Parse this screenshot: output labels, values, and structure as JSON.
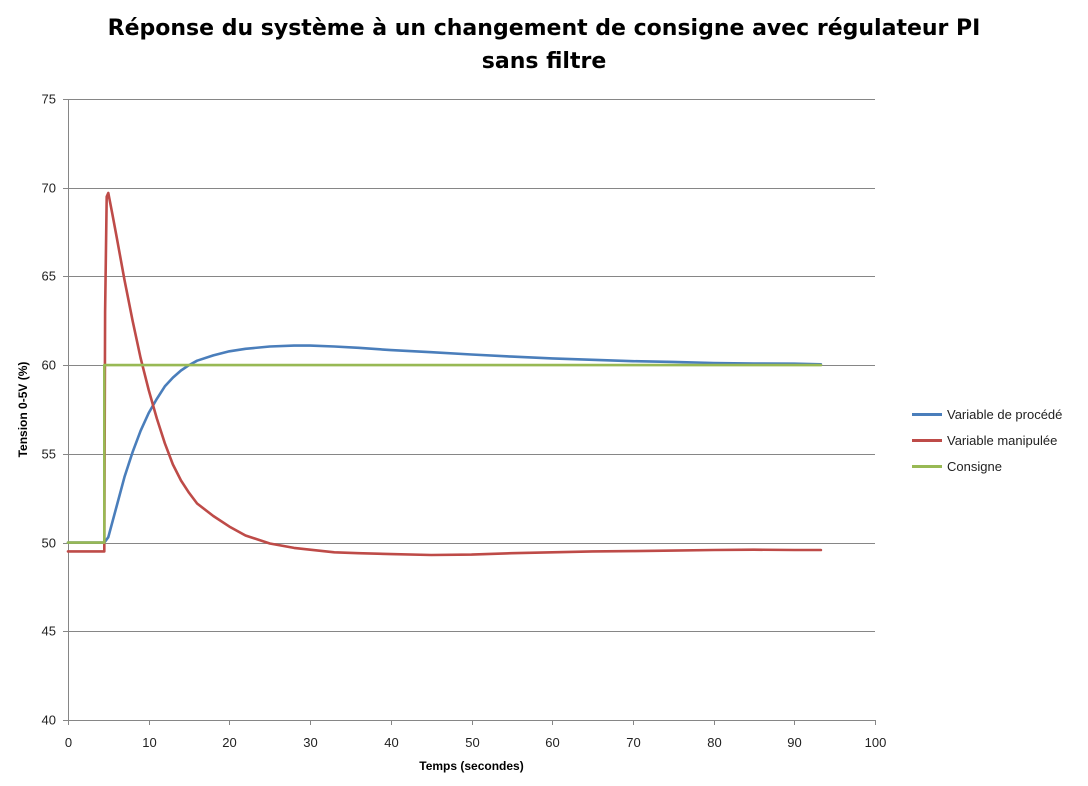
{
  "chart_data": {
    "type": "line",
    "title": [
      "Réponse du système à un changement de consigne avec régulateur PI",
      "sans filtre"
    ],
    "xlabel": "Temps (secondes)",
    "ylabel": "Tension 0-5V (%)",
    "xlim": [
      0,
      100
    ],
    "ylim": [
      40,
      75
    ],
    "xticks": [
      0,
      10,
      20,
      30,
      40,
      50,
      60,
      70,
      80,
      90,
      100
    ],
    "yticks": [
      40,
      45,
      50,
      55,
      60,
      65,
      70,
      75
    ],
    "grid": "horizontal",
    "legend_position": "right",
    "series": [
      {
        "name": "Variable de procédé",
        "color": "#4A7EBB",
        "points": [
          [
            0,
            50
          ],
          [
            4.5,
            50
          ],
          [
            5,
            50.3
          ],
          [
            6,
            52
          ],
          [
            7,
            53.7
          ],
          [
            8,
            55.1
          ],
          [
            9,
            56.3
          ],
          [
            10,
            57.3
          ],
          [
            11,
            58.1
          ],
          [
            12,
            58.8
          ],
          [
            13,
            59.3
          ],
          [
            14,
            59.7
          ],
          [
            15,
            60
          ],
          [
            16,
            60.25
          ],
          [
            18,
            60.55
          ],
          [
            20,
            60.78
          ],
          [
            22,
            60.92
          ],
          [
            25,
            61.05
          ],
          [
            28,
            61.1
          ],
          [
            30,
            61.1
          ],
          [
            33,
            61.05
          ],
          [
            36,
            60.98
          ],
          [
            40,
            60.85
          ],
          [
            45,
            60.73
          ],
          [
            50,
            60.6
          ],
          [
            55,
            60.48
          ],
          [
            60,
            60.38
          ],
          [
            65,
            60.3
          ],
          [
            70,
            60.22
          ],
          [
            75,
            60.18
          ],
          [
            80,
            60.12
          ],
          [
            85,
            60.09
          ],
          [
            90,
            60.08
          ],
          [
            93.3,
            60.05
          ]
        ]
      },
      {
        "name": "Variable manipulée",
        "color": "#BE4B48",
        "points": [
          [
            0,
            49.5
          ],
          [
            4.5,
            49.5
          ],
          [
            4.6,
            63
          ],
          [
            4.8,
            69.5
          ],
          [
            5,
            69.7
          ],
          [
            5.5,
            68.5
          ],
          [
            6,
            67.3
          ],
          [
            7,
            64.8
          ],
          [
            8,
            62.5
          ],
          [
            9,
            60.4
          ],
          [
            10,
            58.6
          ],
          [
            11,
            57
          ],
          [
            12,
            55.6
          ],
          [
            13,
            54.4
          ],
          [
            14,
            53.5
          ],
          [
            15,
            52.8
          ],
          [
            16,
            52.2
          ],
          [
            18,
            51.5
          ],
          [
            20,
            50.9
          ],
          [
            22,
            50.4
          ],
          [
            25,
            49.95
          ],
          [
            28,
            49.7
          ],
          [
            30,
            49.6
          ],
          [
            33,
            49.45
          ],
          [
            36,
            49.4
          ],
          [
            40,
            49.35
          ],
          [
            45,
            49.3
          ],
          [
            50,
            49.32
          ],
          [
            55,
            49.4
          ],
          [
            60,
            49.45
          ],
          [
            65,
            49.5
          ],
          [
            70,
            49.52
          ],
          [
            75,
            49.55
          ],
          [
            80,
            49.58
          ],
          [
            85,
            49.6
          ],
          [
            90,
            49.58
          ],
          [
            93.3,
            49.58
          ]
        ]
      },
      {
        "name": "Consigne",
        "color": "#98B954",
        "points": [
          [
            0,
            50
          ],
          [
            4.5,
            50
          ],
          [
            4.5,
            60
          ],
          [
            93.3,
            60
          ]
        ]
      }
    ]
  }
}
